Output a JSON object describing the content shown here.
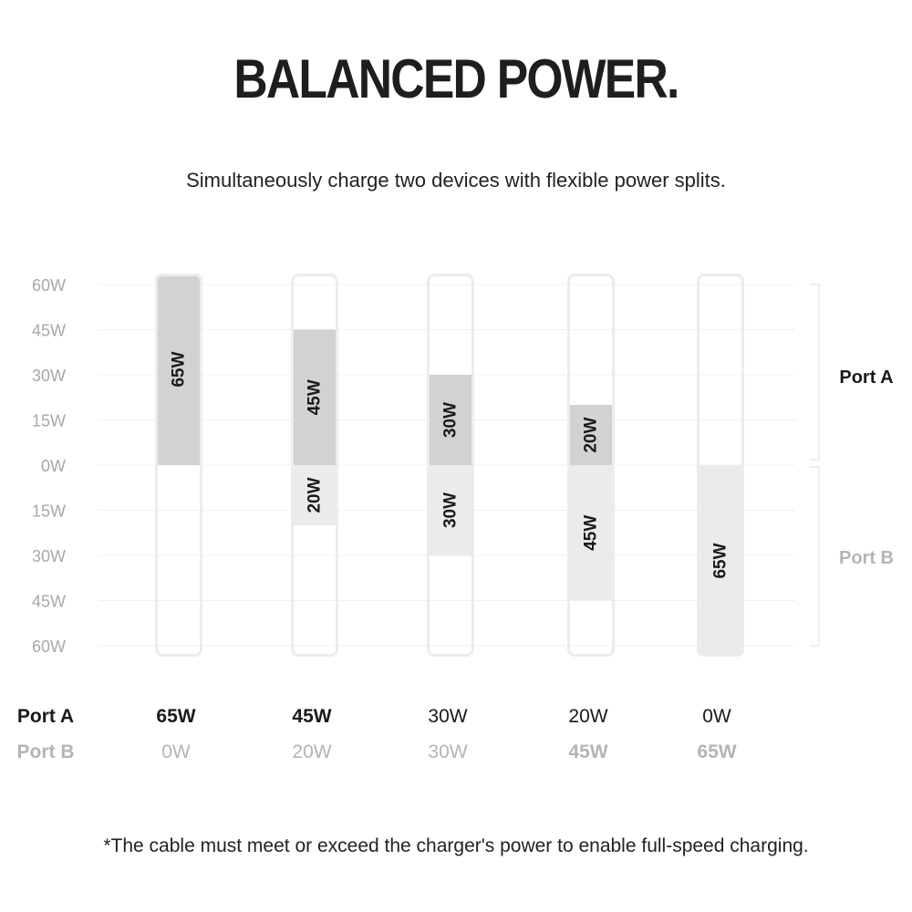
{
  "title": "BALANCED POWER.",
  "subtitle": "Simultaneously charge two devices with flexible power splits.",
  "footnote": "*The cable must meet or exceed the charger's power to enable full-speed charging.",
  "chart_data": {
    "type": "bar",
    "y_ticks_top": [
      "60W",
      "45W",
      "30W",
      "15W",
      "0W"
    ],
    "y_ticks_bottom": [
      "15W",
      "30W",
      "45W",
      "60W"
    ],
    "ylim": [
      -60,
      60
    ],
    "categories": [
      "65W / 0W",
      "45W / 20W",
      "30W / 30W",
      "20W / 45W",
      "0W / 65W"
    ],
    "series": [
      {
        "name": "Port A",
        "values": [
          65,
          45,
          30,
          20,
          0
        ],
        "labels": [
          "65W",
          "45W",
          "30W",
          "20W",
          ""
        ],
        "table_labels": [
          "65W",
          "45W",
          "30W",
          "20W",
          "0W"
        ],
        "color": "#d2d2d2"
      },
      {
        "name": "Port B",
        "values": [
          0,
          20,
          30,
          45,
          65
        ],
        "labels": [
          "",
          "20W",
          "30W",
          "45W",
          "65W"
        ],
        "table_labels": [
          "0W",
          "20W",
          "30W",
          "45W",
          "65W"
        ],
        "color": "#ebebeb"
      }
    ],
    "side_labels": [
      "Port A",
      "Port B"
    ],
    "grid": true,
    "colors": {
      "outline": "#ececec",
      "grid": "#f0f0f0",
      "tick": "#a8a8a8",
      "port_b_text": "#b4b4b4",
      "text": "#1a1a1a"
    }
  }
}
